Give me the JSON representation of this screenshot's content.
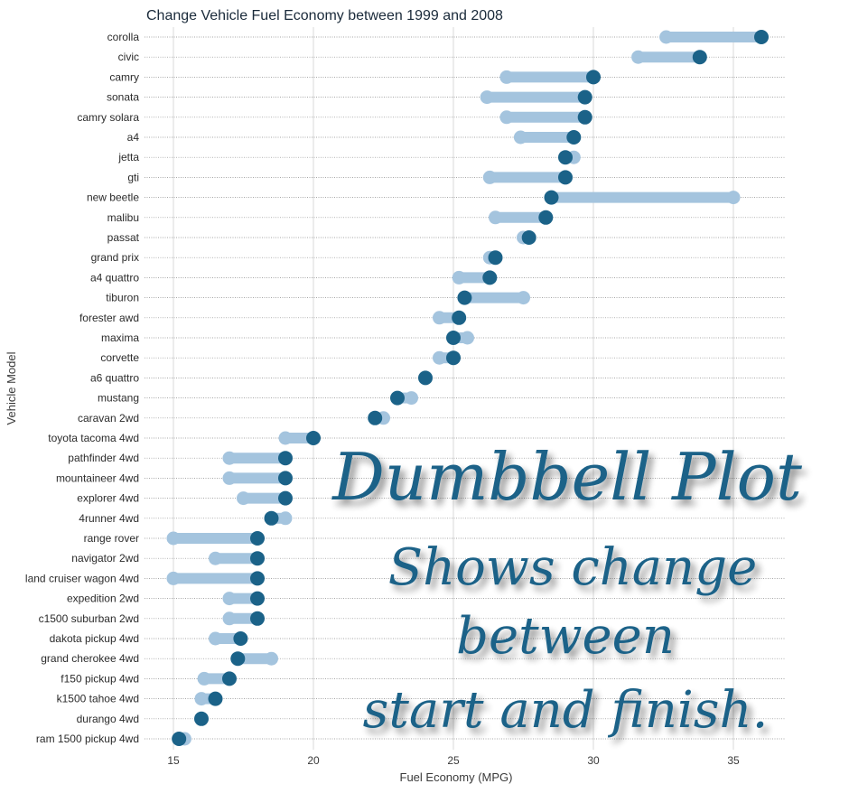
{
  "chart_data": {
    "type": "dumbbell",
    "title": "Change Vehicle Fuel Economy between 1999 and 2008",
    "xlabel": "Fuel Economy (MPG)",
    "ylabel": "Vehicle Model",
    "xlim": [
      13.5,
      37
    ],
    "xticks": [
      15,
      20,
      25,
      30,
      35
    ],
    "colors": {
      "start": "#a4c4de",
      "end": "#1b6288",
      "gridline": "#d9d9d9"
    },
    "categories": [
      "corolla",
      "civic",
      "camry",
      "sonata",
      "camry solara",
      "a4",
      "jetta",
      "gti",
      "new beetle",
      "malibu",
      "passat",
      "grand prix",
      "a4 quattro",
      "tiburon",
      "forester awd",
      "maxima",
      "corvette",
      "a6 quattro",
      "mustang",
      "caravan 2wd",
      "toyota tacoma 4wd",
      "pathfinder 4wd",
      "mountaineer 4wd",
      "explorer 4wd",
      "4runner 4wd",
      "range rover",
      "navigator 2wd",
      "land cruiser wagon 4wd",
      "expedition 2wd",
      "c1500 suburban 2wd",
      "dakota pickup 4wd",
      "grand cherokee 4wd",
      "f150 pickup 4wd",
      "k1500 tahoe 4wd",
      "durango 4wd",
      "ram 1500 pickup 4wd"
    ],
    "series": [
      {
        "values": [
          32.6,
          31.6,
          26.9,
          26.2,
          26.9,
          27.4,
          29.3,
          26.3,
          35.0,
          26.5,
          27.5,
          26.3,
          25.2,
          27.5,
          24.5,
          25.5,
          24.5,
          24.0,
          23.5,
          22.5,
          19.0,
          17.0,
          17.0,
          17.5,
          19.0,
          15.0,
          16.5,
          15.0,
          17.0,
          17.0,
          16.5,
          18.5,
          16.1,
          16.0,
          16.0,
          15.4
        ]
      },
      {
        "values": [
          36.0,
          33.8,
          30.0,
          29.7,
          29.7,
          29.3,
          29.0,
          29.0,
          28.5,
          28.3,
          27.7,
          26.5,
          26.3,
          25.4,
          25.2,
          25.0,
          25.0,
          24.0,
          23.0,
          22.2,
          20.0,
          19.0,
          19.0,
          19.0,
          18.5,
          18.0,
          18.0,
          18.0,
          18.0,
          18.0,
          17.4,
          17.3,
          17.0,
          16.5,
          16.0,
          15.2
        ]
      }
    ]
  },
  "overlay": {
    "headline": "Dumbbell Plot",
    "line1": "Shows change",
    "line2": "between",
    "line3": "start and finish."
  }
}
